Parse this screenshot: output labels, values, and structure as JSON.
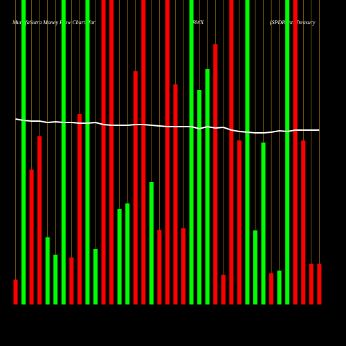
{
  "chart_data": {
    "type": "bar",
    "title": "MunafaSutra  Money Flow  Charts for",
    "symbol": "BWX",
    "subtitle": "(SPDR Intl Treasury",
    "ylim": [
      0,
      440
    ],
    "categories": [
      null,
      null,
      null,
      null,
      null,
      null,
      null,
      null,
      null,
      null,
      null,
      null,
      null,
      null,
      null,
      null,
      null,
      null,
      null,
      null,
      null,
      null,
      null,
      null,
      null,
      null,
      null,
      null,
      null,
      null,
      null,
      null,
      null,
      null,
      null,
      null,
      null,
      null,
      null
    ],
    "values": [
      36,
      440,
      195,
      243,
      97,
      72,
      440,
      68,
      275,
      440,
      80,
      440,
      440,
      138,
      146,
      337,
      440,
      177,
      108,
      440,
      318,
      110,
      440,
      310,
      340,
      376,
      43,
      440,
      237,
      440,
      107,
      234,
      45,
      49,
      440,
      440,
      237,
      59,
      59
    ],
    "colors": [
      "#ff0000",
      "#00ff00",
      "#ff0000",
      "#ff0000",
      "#00ff00",
      "#00ff00",
      "#00ff00",
      "#ff0000",
      "#ff0000",
      "#00ff00",
      "#00ff00",
      "#ff0000",
      "#ff0000",
      "#00ff00",
      "#00ff00",
      "#ff0000",
      "#ff0000",
      "#00ff00",
      "#ff0000",
      "#ff0000",
      "#ff0000",
      "#ff0000",
      "#00ff00",
      "#00ff00",
      "#00ff00",
      "#ff0000",
      "#ff0000",
      "#ff0000",
      "#ff0000",
      "#00ff00",
      "#00ff00",
      "#00ff00",
      "#ff0000",
      "#00ff00",
      "#00ff00",
      "#ff0000",
      "#ff0000",
      "#ff0000",
      "#ff0000"
    ],
    "line": {
      "color": "#ffffff",
      "values": [
        268,
        266,
        265,
        265,
        263,
        264,
        263,
        263,
        262,
        262,
        263,
        260,
        259,
        259,
        259,
        260,
        260,
        259,
        258,
        257,
        257,
        257,
        257,
        254,
        257,
        255,
        256,
        252,
        250,
        249,
        248,
        248,
        249,
        251,
        250,
        252,
        252,
        252,
        252
      ]
    },
    "gridline_color": "#b8860b"
  }
}
